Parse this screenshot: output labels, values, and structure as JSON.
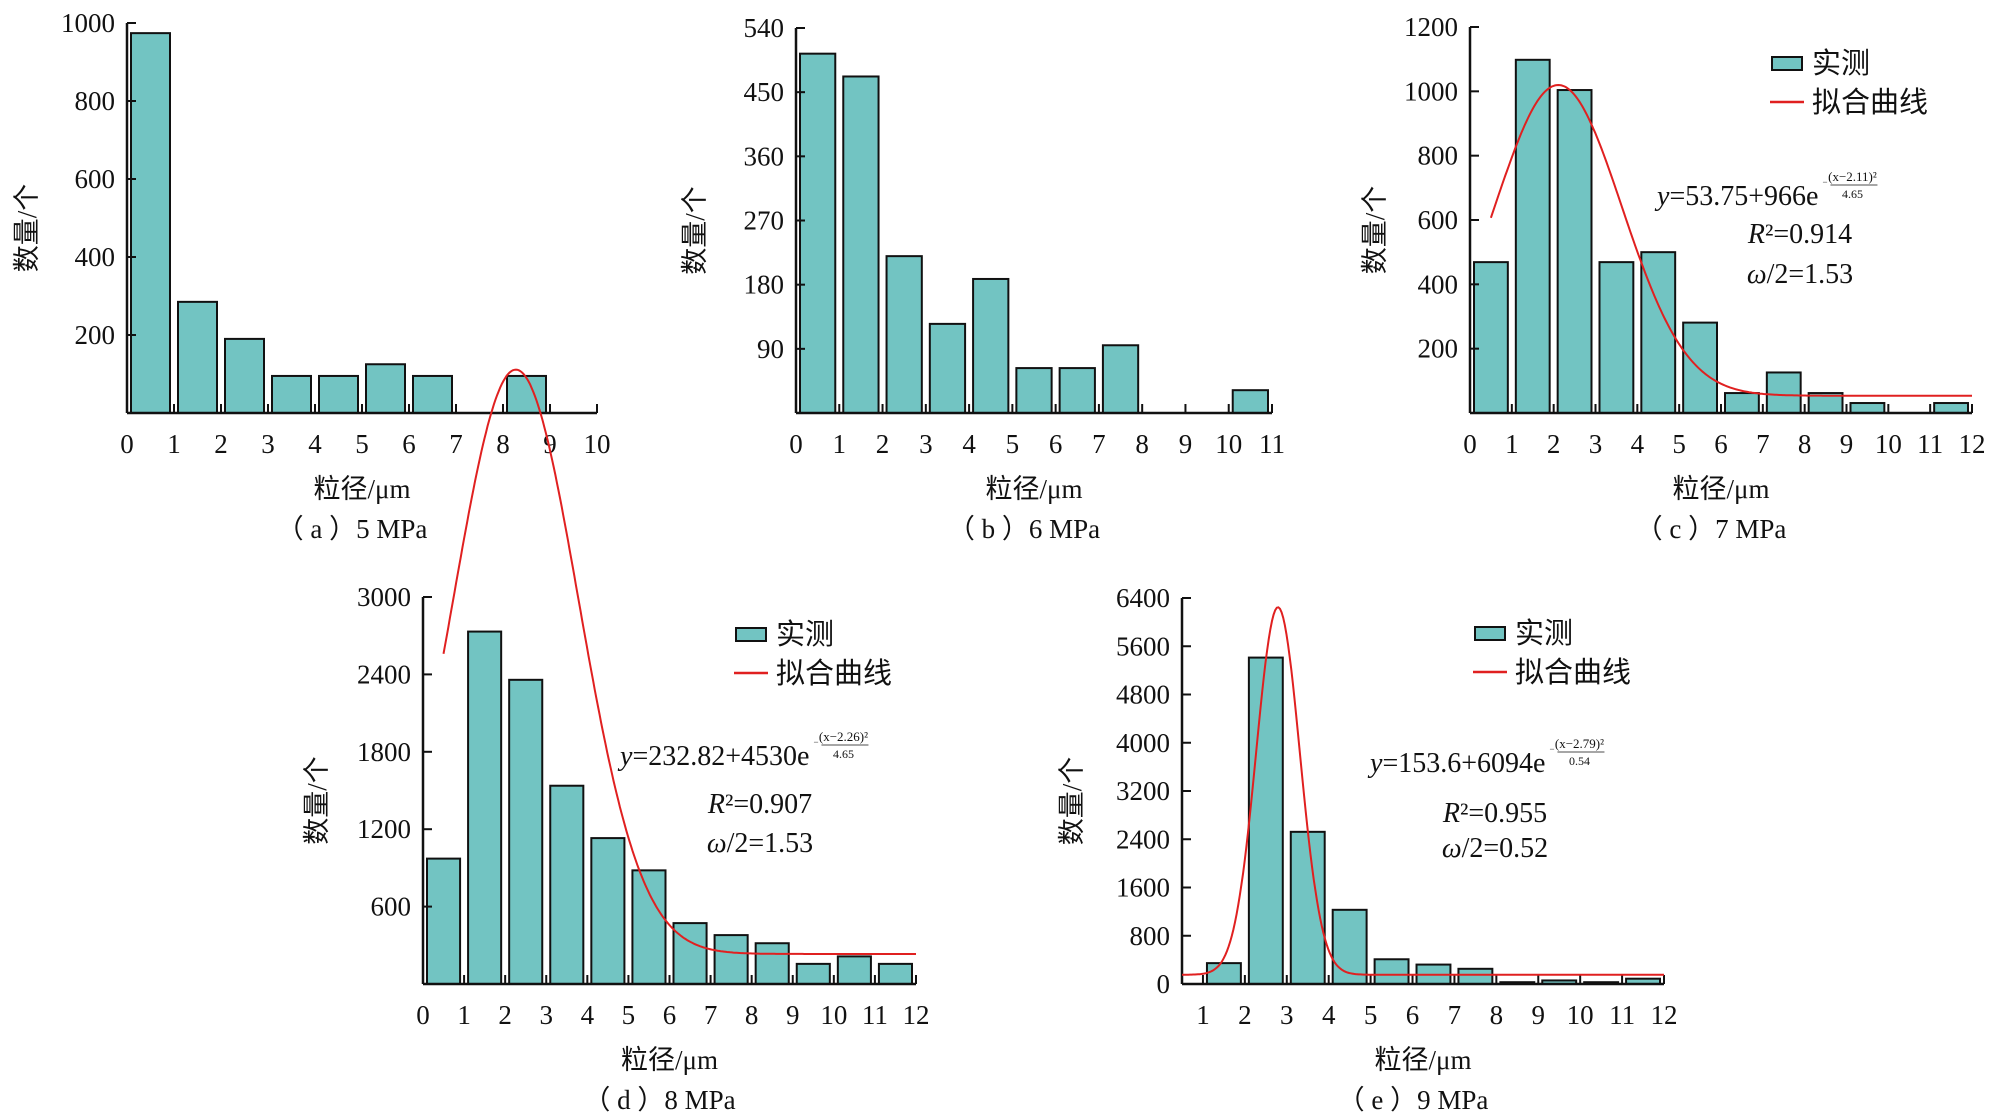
{
  "figure": {
    "legend": {
      "measured": "实测",
      "fit": "拟合曲线"
    }
  },
  "colors": {
    "bar_fill": "#72c4c2",
    "bar_stroke": "#111111",
    "fit_line": "#e02020"
  },
  "chart_data": [
    {
      "id": "a",
      "type": "bar",
      "caption": "（ a ）5 MPa",
      "xlabel": "粒径/μm",
      "ylabel": "数量/个",
      "xlim": [
        0,
        10
      ],
      "ylim": [
        0,
        1000
      ],
      "xticks": [
        "0",
        "1",
        "2",
        "3",
        "4",
        "5",
        "6",
        "7",
        "8",
        "9",
        "10"
      ],
      "yticks": [
        "200",
        "400",
        "600",
        "800",
        "1000"
      ],
      "ytick_values": [
        200,
        400,
        600,
        800,
        1000
      ],
      "bins": [
        [
          0,
          1
        ],
        [
          1,
          2
        ],
        [
          2,
          3
        ],
        [
          3,
          4
        ],
        [
          4,
          5
        ],
        [
          5,
          6
        ],
        [
          6,
          7
        ],
        [
          7,
          8
        ],
        [
          8,
          9
        ],
        [
          9,
          10
        ]
      ],
      "values": [
        974,
        285,
        190,
        95,
        95,
        125,
        95,
        0,
        95,
        0
      ],
      "fit": null
    },
    {
      "id": "b",
      "type": "bar",
      "caption": "（ b ）6 MPa",
      "xlabel": "粒径/μm",
      "ylabel": "数量/个",
      "xlim": [
        0,
        11
      ],
      "ylim": [
        0,
        540
      ],
      "xticks": [
        "0",
        "1",
        "2",
        "3",
        "4",
        "5",
        "6",
        "7",
        "8",
        "9",
        "10",
        "11"
      ],
      "yticks": [
        "90",
        "180",
        "270",
        "360",
        "450",
        "540"
      ],
      "ytick_values": [
        90,
        180,
        270,
        360,
        450,
        540
      ],
      "bins": [
        [
          0,
          1
        ],
        [
          1,
          2
        ],
        [
          2,
          3
        ],
        [
          3,
          4
        ],
        [
          4,
          5
        ],
        [
          5,
          6
        ],
        [
          6,
          7
        ],
        [
          7,
          8
        ],
        [
          8,
          9
        ],
        [
          9,
          10
        ],
        [
          10,
          11
        ]
      ],
      "values": [
        504,
        472,
        220,
        125,
        188,
        63,
        63,
        95,
        0,
        0,
        32
      ],
      "fit": null
    },
    {
      "id": "c",
      "type": "bar",
      "caption": "（ c ）7 MPa",
      "xlabel": "粒径/μm",
      "ylabel": "数量/个",
      "xlim": [
        0,
        12
      ],
      "ylim": [
        0,
        1200
      ],
      "xticks": [
        "0",
        "1",
        "2",
        "3",
        "4",
        "5",
        "6",
        "7",
        "8",
        "9",
        "10",
        "11",
        "12"
      ],
      "yticks": [
        "200",
        "400",
        "600",
        "800",
        "1000",
        "1200"
      ],
      "ytick_values": [
        200,
        400,
        600,
        800,
        1000,
        1200
      ],
      "bins": [
        [
          0,
          1
        ],
        [
          1,
          2
        ],
        [
          2,
          3
        ],
        [
          3,
          4
        ],
        [
          4,
          5
        ],
        [
          5,
          6
        ],
        [
          6,
          7
        ],
        [
          7,
          8
        ],
        [
          8,
          9
        ],
        [
          9,
          10
        ],
        [
          10,
          11
        ],
        [
          11,
          12
        ]
      ],
      "values": [
        469,
        1098,
        1004,
        469,
        500,
        281,
        62,
        126,
        62,
        31,
        0,
        31
      ],
      "fit": {
        "y0": 53.75,
        "A": 966,
        "xc": 2.11,
        "denom": 4.65,
        "x_start": 0.5,
        "x_end": 12,
        "equation_main": "=53.75+966e",
        "equation_exp_num": "(x−2.11)²",
        "equation_exp_den": "4.65",
        "r2": "R²=0.914",
        "half_width": "ω/2=1.53"
      }
    },
    {
      "id": "d",
      "type": "bar",
      "caption": "（ d ）8 MPa",
      "xlabel": "粒径/μm",
      "ylabel": "数量/个",
      "xlim": [
        0,
        12
      ],
      "ylim": [
        0,
        3000
      ],
      "xticks": [
        "0",
        "1",
        "2",
        "3",
        "4",
        "5",
        "6",
        "7",
        "8",
        "9",
        "10",
        "11",
        "12"
      ],
      "yticks": [
        "600",
        "1200",
        "1800",
        "2400",
        "3000"
      ],
      "ytick_values": [
        600,
        1200,
        1800,
        2400,
        3000
      ],
      "bins": [
        [
          0,
          1
        ],
        [
          1,
          2
        ],
        [
          2,
          3
        ],
        [
          3,
          4
        ],
        [
          4,
          5
        ],
        [
          5,
          6
        ],
        [
          6,
          7
        ],
        [
          7,
          8
        ],
        [
          8,
          9
        ],
        [
          9,
          10
        ],
        [
          10,
          11
        ],
        [
          11,
          12
        ]
      ],
      "values": [
        972,
        2732,
        2358,
        1537,
        1131,
        881,
        472,
        379,
        316,
        156,
        214,
        156
      ],
      "fit": {
        "y0": 232.82,
        "A": 4530,
        "xc": 2.26,
        "denom": 4.65,
        "x_start": 0.5,
        "x_end": 12,
        "equation_main": "=232.82+4530e",
        "equation_exp_num": "(x−2.26)²",
        "equation_exp_den": "4.65",
        "r2": "R²=0.907",
        "half_width": "ω/2=1.53"
      }
    },
    {
      "id": "e",
      "type": "bar",
      "caption": "（ e ）9 MPa",
      "xlabel": "粒径/μm",
      "ylabel": "数量/个",
      "xlim": [
        0.5,
        12
      ],
      "ylim": [
        0,
        6400
      ],
      "xticks": [
        "1",
        "2",
        "3",
        "4",
        "5",
        "6",
        "7",
        "8",
        "9",
        "10",
        "11",
        "12"
      ],
      "xtick_values": [
        1,
        2,
        3,
        4,
        5,
        6,
        7,
        8,
        9,
        10,
        11,
        12
      ],
      "yticks": [
        "0",
        "800",
        "1600",
        "2400",
        "3200",
        "4000",
        "4800",
        "5600",
        "6400"
      ],
      "ytick_values": [
        0,
        800,
        1600,
        2400,
        3200,
        4000,
        4800,
        5600,
        6400
      ],
      "bins": [
        [
          1,
          2
        ],
        [
          2,
          3
        ],
        [
          3,
          4
        ],
        [
          4,
          5
        ],
        [
          5,
          6
        ],
        [
          6,
          7
        ],
        [
          7,
          8
        ],
        [
          8,
          9
        ],
        [
          9,
          10
        ],
        [
          10,
          11
        ],
        [
          11,
          12
        ]
      ],
      "values": [
        346,
        5412,
        2523,
        1230,
        410,
        322,
        252,
        30,
        59,
        30,
        88
      ],
      "fit": {
        "y0": 153.6,
        "A": 6094,
        "xc": 2.79,
        "denom": 0.54,
        "x_start": 0.5,
        "x_end": 12,
        "equation_main": "=153.6+6094e",
        "equation_exp_num": "(x−2.79)²",
        "equation_exp_den": "0.54",
        "r2": "R²=0.955",
        "half_width": "ω/2=0.52"
      }
    }
  ]
}
